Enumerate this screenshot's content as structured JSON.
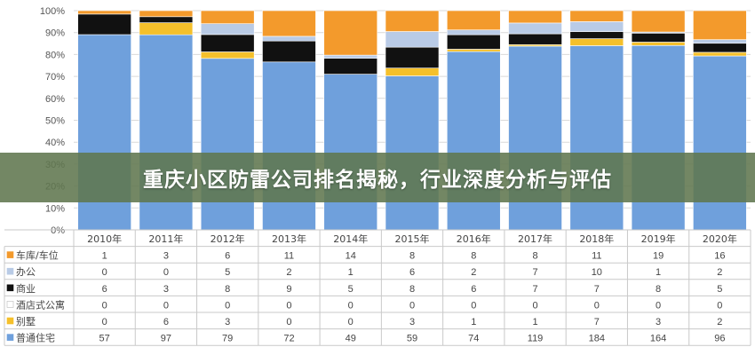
{
  "banner": {
    "title": "重庆小区防雷公司排名揭秘，行业深度分析与评估"
  },
  "chart_data": {
    "type": "bar",
    "stacked": "percent",
    "categories": [
      "2010年",
      "2011年",
      "2012年",
      "2013年",
      "2014年",
      "2015年",
      "2016年",
      "2017年",
      "2018年",
      "2019年",
      "2020年"
    ],
    "y_ticks": [
      "0%",
      "10%",
      "20%",
      "30%",
      "40%",
      "50%",
      "60%",
      "70%",
      "80%",
      "90%",
      "100%"
    ],
    "ylim": [
      0,
      100
    ],
    "grid": true,
    "legend": "table-below",
    "series": [
      {
        "name": "普通住宅",
        "color": "#6fa0dc",
        "values": [
          57,
          97,
          79,
          72,
          49,
          59,
          74,
          119,
          184,
          164,
          96
        ]
      },
      {
        "name": "别墅",
        "color": "#f5c02b",
        "values": [
          0,
          6,
          3,
          0,
          0,
          3,
          1,
          1,
          7,
          3,
          2
        ]
      },
      {
        "name": "酒店式公寓",
        "color": "#ffffff",
        "values": [
          0,
          0,
          0,
          0,
          0,
          0,
          0,
          0,
          0,
          0,
          0
        ]
      },
      {
        "name": "商业",
        "color": "#111111",
        "values": [
          6,
          3,
          8,
          9,
          5,
          8,
          6,
          7,
          7,
          8,
          5
        ]
      },
      {
        "name": "办公",
        "color": "#b9cbe6",
        "values": [
          0,
          0,
          5,
          2,
          1,
          6,
          2,
          7,
          10,
          1,
          2
        ]
      },
      {
        "name": "车库/车位",
        "color": "#f39a2c",
        "values": [
          1,
          3,
          6,
          11,
          14,
          8,
          8,
          8,
          11,
          19,
          16
        ]
      }
    ],
    "table_order": [
      "车库/车位",
      "办公",
      "商业",
      "酒店式公寓",
      "别墅",
      "普通住宅"
    ]
  }
}
